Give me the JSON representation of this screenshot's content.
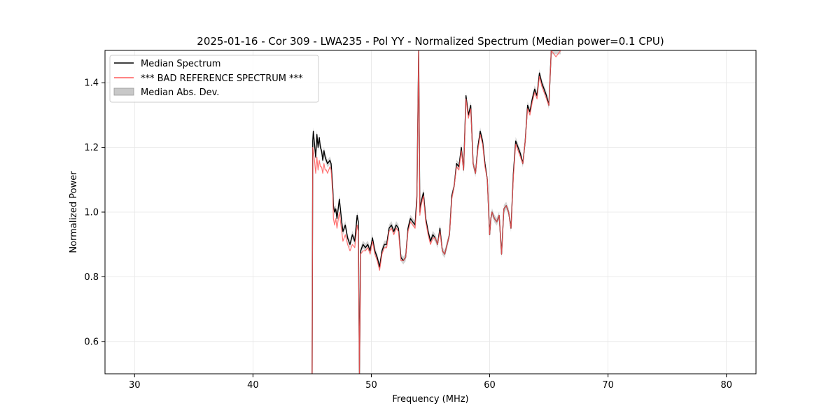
{
  "chart_data": {
    "type": "line",
    "title": "2025-01-16 - Cor 309 - LWA235 - Pol YY - Normalized Spectrum (Median power=0.1 CPU)",
    "xlabel": "Frequency (MHz)",
    "ylabel": "Normalized Power",
    "xlim": [
      27.5,
      82.5
    ],
    "ylim": [
      0.5,
      1.5
    ],
    "xticks": [
      30,
      40,
      50,
      60,
      70,
      80
    ],
    "yticks": [
      0.6,
      0.8,
      1.0,
      1.2,
      1.4
    ],
    "xtick_labels": [
      "30",
      "40",
      "50",
      "60",
      "70",
      "80"
    ],
    "ytick_labels": [
      "0.6",
      "0.8",
      "1.0",
      "1.2",
      "1.4"
    ],
    "grid": true,
    "legend_position": "top-left",
    "legend": [
      {
        "label": "Median Spectrum",
        "color": "#000000",
        "kind": "line"
      },
      {
        "label": "*** BAD REFERENCE SPECTRUM ***",
        "color": "#ff5a5a",
        "kind": "line"
      },
      {
        "label": "Median Abs. Dev.",
        "color": "#c8c8c8",
        "kind": "patch"
      }
    ],
    "series": [
      {
        "name": "Median Spectrum",
        "color": "#000000",
        "x": [
          45.0,
          45.05,
          45.1,
          45.2,
          45.3,
          45.4,
          45.5,
          45.6,
          45.7,
          45.8,
          45.9,
          46.0,
          46.1,
          46.2,
          46.3,
          46.5,
          46.6,
          46.75,
          46.8,
          46.9,
          47.0,
          47.1,
          47.3,
          47.5,
          47.6,
          47.8,
          48.0,
          48.2,
          48.4,
          48.6,
          48.8,
          48.9,
          49.0,
          49.1,
          49.3,
          49.5,
          49.7,
          49.9,
          50.1,
          50.3,
          50.5,
          50.7,
          50.9,
          51.1,
          51.3,
          51.5,
          51.7,
          51.9,
          52.1,
          52.3,
          52.5,
          52.7,
          52.9,
          53.1,
          53.3,
          53.5,
          53.7,
          53.85,
          54.0,
          54.1,
          54.2,
          54.4,
          54.6,
          54.8,
          55.0,
          55.2,
          55.4,
          55.6,
          55.8,
          56.0,
          56.2,
          56.4,
          56.6,
          56.8,
          57.0,
          57.2,
          57.4,
          57.6,
          57.8,
          58.0,
          58.2,
          58.4,
          58.6,
          58.8,
          59.0,
          59.2,
          59.4,
          59.6,
          59.8,
          60.0,
          60.1,
          60.2,
          60.4,
          60.6,
          60.8,
          61.0,
          61.2,
          61.4,
          61.6,
          61.8,
          62.0,
          62.2,
          62.4,
          62.6,
          62.8,
          63.0,
          63.2,
          63.4,
          63.6,
          63.8,
          64.0,
          64.2,
          64.4,
          64.6,
          64.8,
          65.0,
          65.2,
          65.4,
          65.6,
          65.8,
          66.0
        ],
        "y": [
          0.5,
          1.22,
          1.25,
          1.21,
          1.17,
          1.24,
          1.2,
          1.23,
          1.2,
          1.19,
          1.16,
          1.19,
          1.17,
          1.16,
          1.15,
          1.16,
          1.15,
          1.07,
          1.02,
          1.0,
          1.01,
          0.98,
          1.04,
          0.97,
          0.94,
          0.96,
          0.92,
          0.9,
          0.93,
          0.91,
          0.99,
          0.97,
          0.5,
          0.88,
          0.9,
          0.89,
          0.9,
          0.88,
          0.92,
          0.88,
          0.86,
          0.83,
          0.88,
          0.9,
          0.9,
          0.95,
          0.96,
          0.94,
          0.96,
          0.95,
          0.86,
          0.85,
          0.86,
          0.95,
          0.98,
          0.97,
          0.96,
          1.05,
          1.5,
          1.0,
          1.03,
          1.06,
          0.98,
          0.94,
          0.91,
          0.93,
          0.92,
          0.9,
          0.95,
          0.88,
          0.87,
          0.9,
          0.93,
          1.05,
          1.08,
          1.15,
          1.14,
          1.2,
          1.13,
          1.36,
          1.3,
          1.33,
          1.15,
          1.12,
          1.2,
          1.25,
          1.22,
          1.15,
          1.1,
          0.93,
          0.98,
          1.0,
          0.98,
          0.97,
          0.99,
          0.87,
          1.01,
          1.02,
          1.0,
          0.95,
          1.12,
          1.22,
          1.2,
          1.18,
          1.15,
          1.22,
          1.33,
          1.31,
          1.35,
          1.38,
          1.36,
          1.43,
          1.4,
          1.38,
          1.36,
          1.33,
          1.5,
          1.5,
          1.5,
          1.5,
          1.5
        ]
      },
      {
        "name": "*** BAD REFERENCE SPECTRUM ***",
        "color": "#ff5a5a",
        "x": [
          45.0,
          45.05,
          45.1,
          45.2,
          45.3,
          45.4,
          45.5,
          45.6,
          45.7,
          45.8,
          45.9,
          46.0,
          46.1,
          46.2,
          46.3,
          46.5,
          46.6,
          46.75,
          46.8,
          46.9,
          47.0,
          47.1,
          47.3,
          47.5,
          47.6,
          47.8,
          48.0,
          48.2,
          48.4,
          48.6,
          48.8,
          48.9,
          49.0,
          49.1,
          49.3,
          49.5,
          49.7,
          49.9,
          50.1,
          50.3,
          50.5,
          50.7,
          50.9,
          51.1,
          51.3,
          51.5,
          51.7,
          51.9,
          52.1,
          52.3,
          52.5,
          52.7,
          52.9,
          53.1,
          53.3,
          53.5,
          53.7,
          53.85,
          54.0,
          54.1,
          54.2,
          54.4,
          54.6,
          54.8,
          55.0,
          55.2,
          55.4,
          55.6,
          55.8,
          56.0,
          56.2,
          56.4,
          56.6,
          56.8,
          57.0,
          57.2,
          57.4,
          57.6,
          57.8,
          58.0,
          58.2,
          58.4,
          58.6,
          58.8,
          59.0,
          59.2,
          59.4,
          59.6,
          59.8,
          60.0,
          60.1,
          60.2,
          60.4,
          60.6,
          60.8,
          61.0,
          61.2,
          61.4,
          61.6,
          61.8,
          62.0,
          62.2,
          62.4,
          62.6,
          62.8,
          63.0,
          63.2,
          63.4,
          63.6,
          63.8,
          64.0,
          64.2,
          64.4,
          64.6,
          64.8,
          65.0,
          65.2,
          65.4,
          65.6,
          65.8,
          66.0
        ],
        "y": [
          0.5,
          1.2,
          1.19,
          1.16,
          1.12,
          1.17,
          1.13,
          1.16,
          1.14,
          1.14,
          1.12,
          1.15,
          1.13,
          1.13,
          1.12,
          1.14,
          1.13,
          1.05,
          0.98,
          0.96,
          0.98,
          0.95,
          1.0,
          0.94,
          0.91,
          0.93,
          0.9,
          0.88,
          0.9,
          0.89,
          0.96,
          0.94,
          0.5,
          0.87,
          0.88,
          0.88,
          0.89,
          0.87,
          0.91,
          0.87,
          0.85,
          0.82,
          0.87,
          0.89,
          0.89,
          0.94,
          0.95,
          0.93,
          0.95,
          0.94,
          0.85,
          0.85,
          0.86,
          0.94,
          0.97,
          0.96,
          0.95,
          1.03,
          1.5,
          0.99,
          1.02,
          1.05,
          0.97,
          0.93,
          0.9,
          0.92,
          0.92,
          0.9,
          0.94,
          0.88,
          0.87,
          0.9,
          0.93,
          1.04,
          1.08,
          1.14,
          1.13,
          1.19,
          1.13,
          1.35,
          1.29,
          1.32,
          1.15,
          1.12,
          1.19,
          1.24,
          1.21,
          1.14,
          1.1,
          0.93,
          0.98,
          1.0,
          0.98,
          0.97,
          0.99,
          0.87,
          1.01,
          1.02,
          1.0,
          0.95,
          1.11,
          1.21,
          1.19,
          1.17,
          1.15,
          1.22,
          1.32,
          1.3,
          1.34,
          1.37,
          1.35,
          1.42,
          1.39,
          1.37,
          1.35,
          1.33,
          1.5,
          1.49,
          1.48,
          1.49,
          1.5
        ]
      }
    ]
  }
}
